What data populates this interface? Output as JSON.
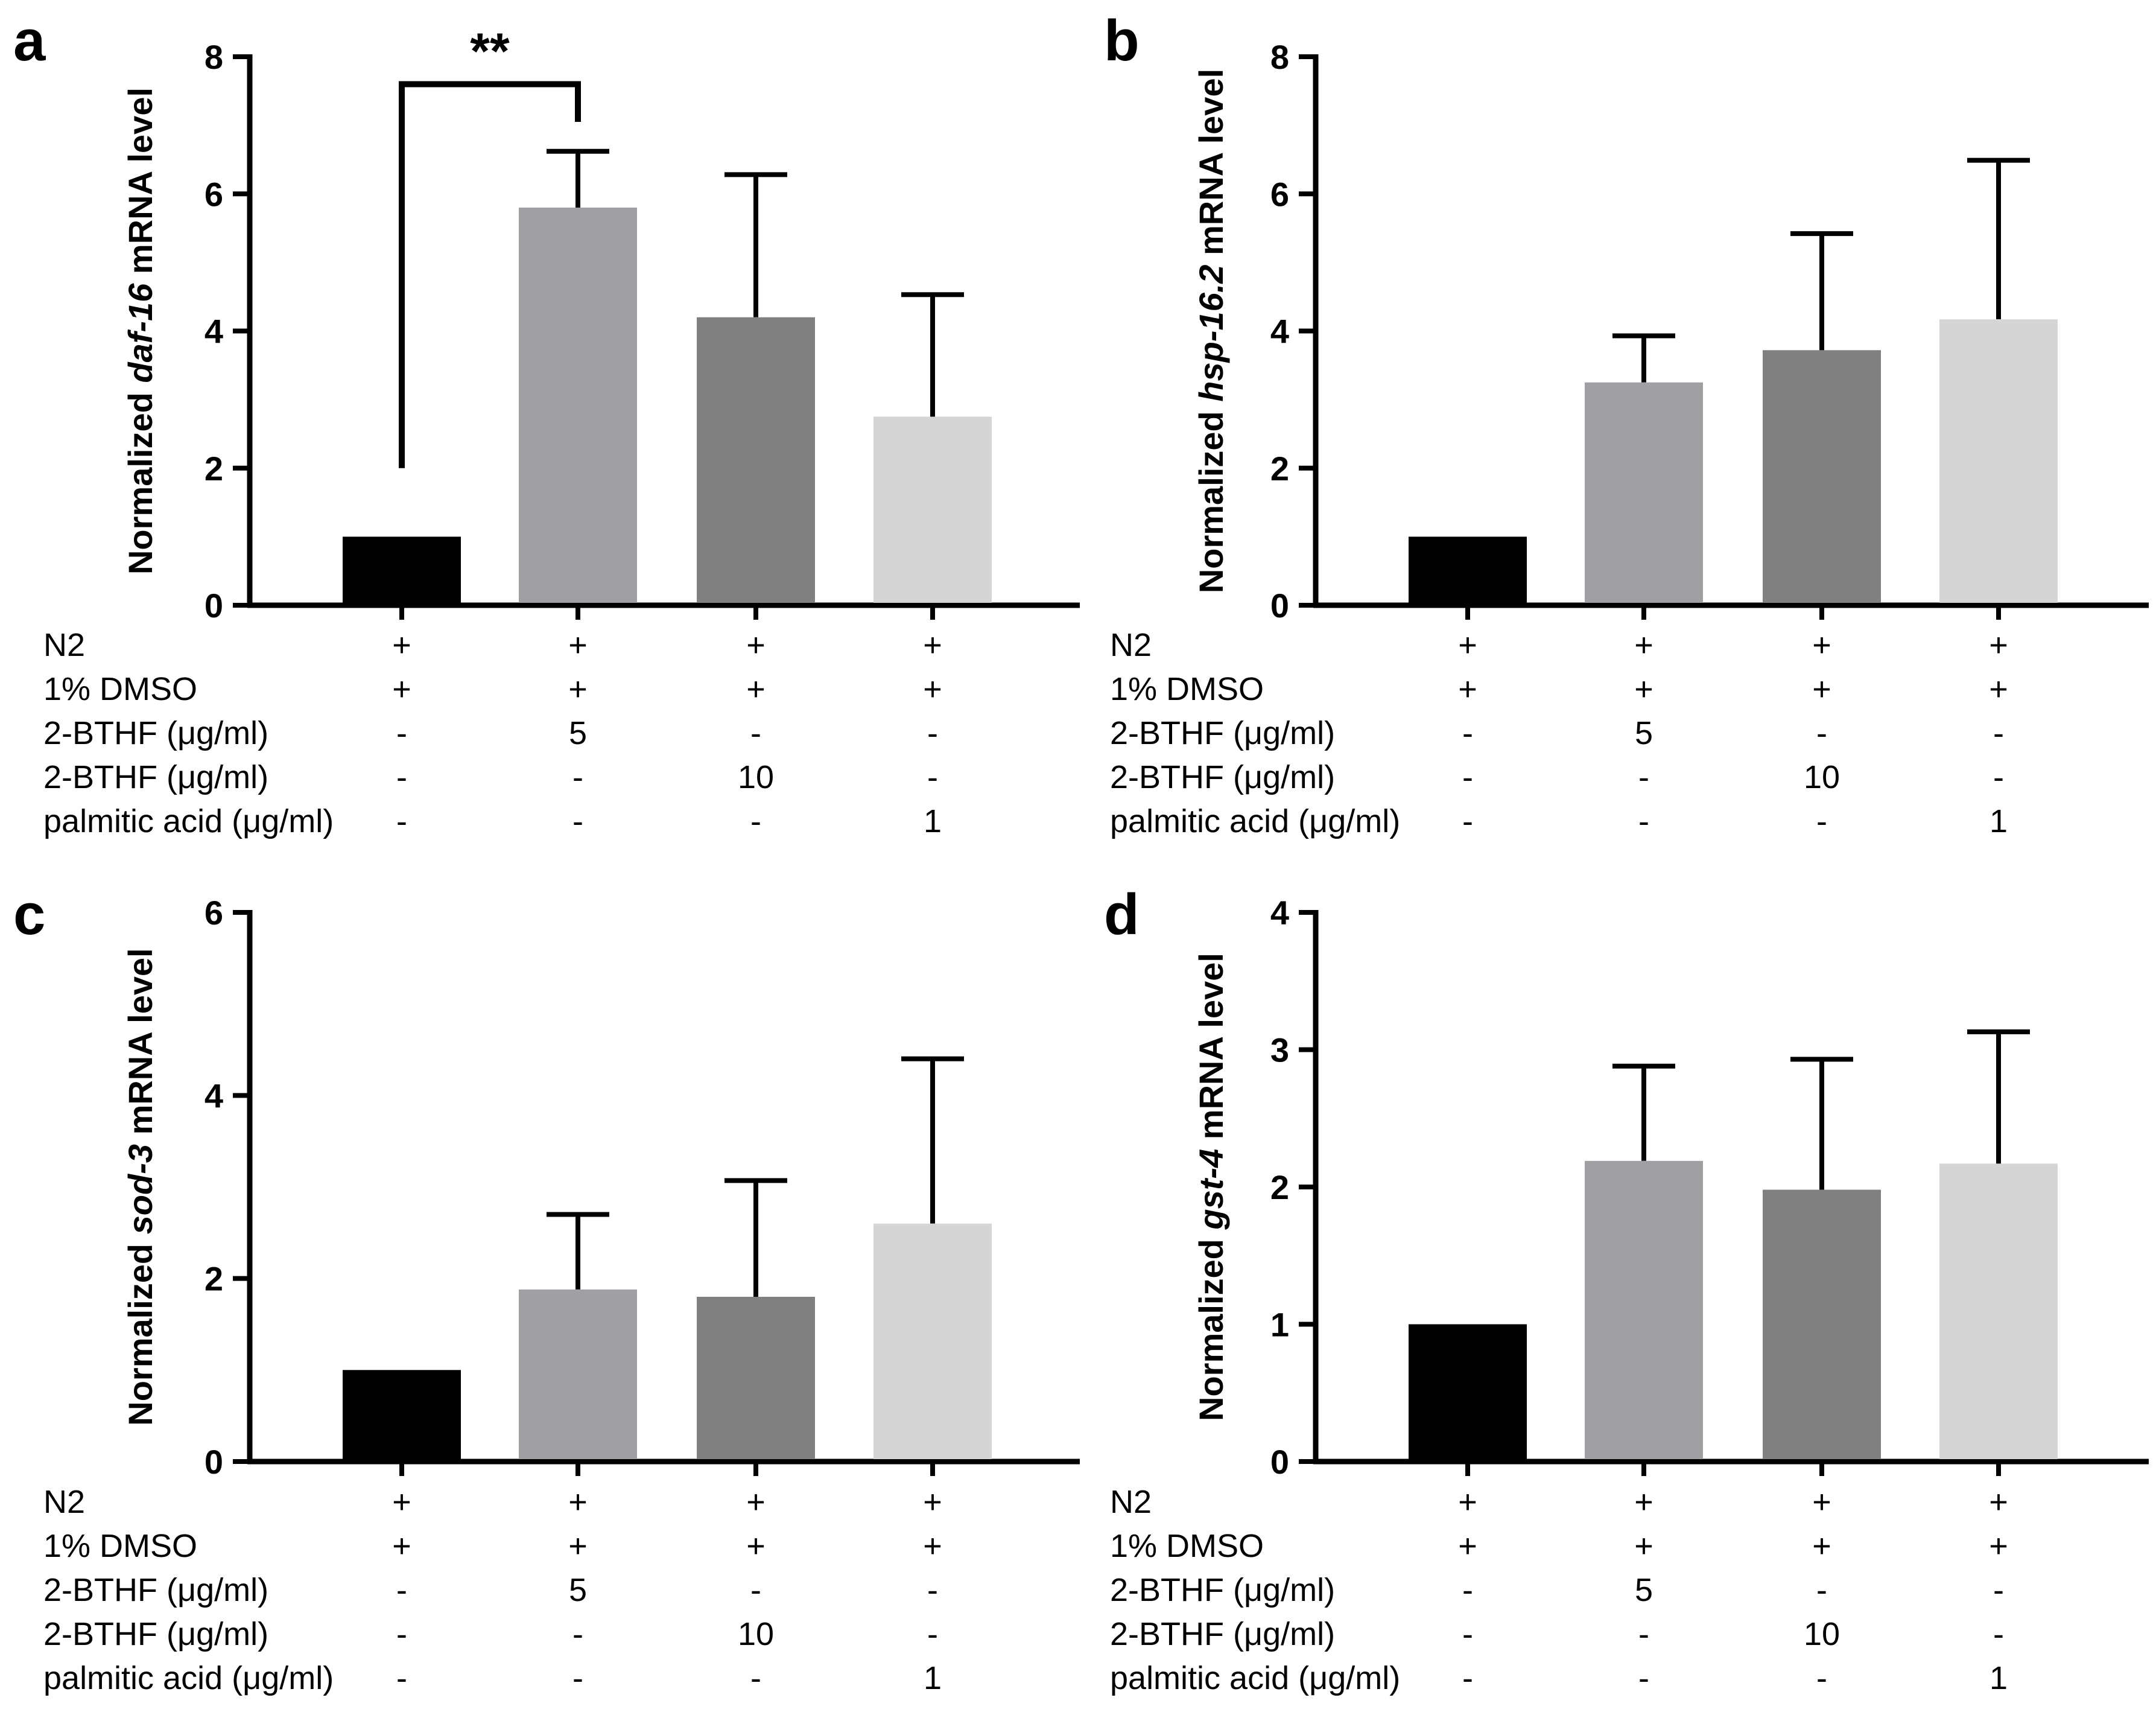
{
  "chart_data": [
    {
      "panel": "a",
      "type": "bar",
      "ylabel": {
        "prefix": "Normalized ",
        "gene": "daf-16",
        "suffix": " mRNA level"
      },
      "ylim": [
        0,
        8
      ],
      "yticks": [
        0,
        2,
        4,
        6,
        8
      ],
      "values": [
        1.0,
        5.8,
        4.2,
        2.75
      ],
      "errors": [
        0,
        0.82,
        2.08,
        1.78
      ],
      "significance": {
        "label": "**",
        "from_bar": 0,
        "to_bar": 1,
        "bracket_y": 7.6,
        "left_end": 2.0,
        "right_end": 7.05
      }
    },
    {
      "panel": "b",
      "type": "bar",
      "ylabel": {
        "prefix": "Normalized ",
        "gene": "hsp-16.2",
        "suffix": " mRNA level"
      },
      "ylim": [
        0,
        8
      ],
      "yticks": [
        0,
        2,
        4,
        6,
        8
      ],
      "values": [
        1.0,
        3.25,
        3.72,
        4.17
      ],
      "errors": [
        0,
        0.68,
        1.7,
        2.32
      ]
    },
    {
      "panel": "c",
      "type": "bar",
      "ylabel": {
        "prefix": "Normalized ",
        "gene": "sod-3",
        "suffix": " mRNA level"
      },
      "ylim": [
        0,
        6
      ],
      "yticks": [
        0,
        2,
        4,
        6
      ],
      "values": [
        1.0,
        1.88,
        1.8,
        2.6
      ],
      "errors": [
        0,
        0.82,
        1.27,
        1.8
      ]
    },
    {
      "panel": "d",
      "type": "bar",
      "ylabel": {
        "prefix": "Normalized ",
        "gene": "gst-4",
        "suffix": " mRNA level"
      },
      "ylim": [
        0,
        4
      ],
      "yticks": [
        0,
        1,
        2,
        3,
        4
      ],
      "values": [
        1.0,
        2.19,
        1.98,
        2.17
      ],
      "errors": [
        0,
        0.69,
        0.95,
        0.96
      ]
    }
  ],
  "bar_colors": [
    "#000000",
    "#a0a0a4",
    "#808080",
    "#d5d5d5"
  ],
  "treatment_table": {
    "rows": [
      {
        "label": "N2",
        "cells": [
          "+",
          "+",
          "+",
          "+"
        ]
      },
      {
        "label": "1% DMSO",
        "cells": [
          "+",
          "+",
          "+",
          "+"
        ]
      },
      {
        "label": "2-BTHF (μg/ml)",
        "cells": [
          "-",
          "5",
          "-",
          "-"
        ]
      },
      {
        "label": "2-BTHF (μg/ml)",
        "cells": [
          "-",
          "-",
          "10",
          "-"
        ]
      },
      {
        "label": "palmitic acid (μg/ml)",
        "cells": [
          "-",
          "-",
          "-",
          "1"
        ]
      }
    ]
  }
}
